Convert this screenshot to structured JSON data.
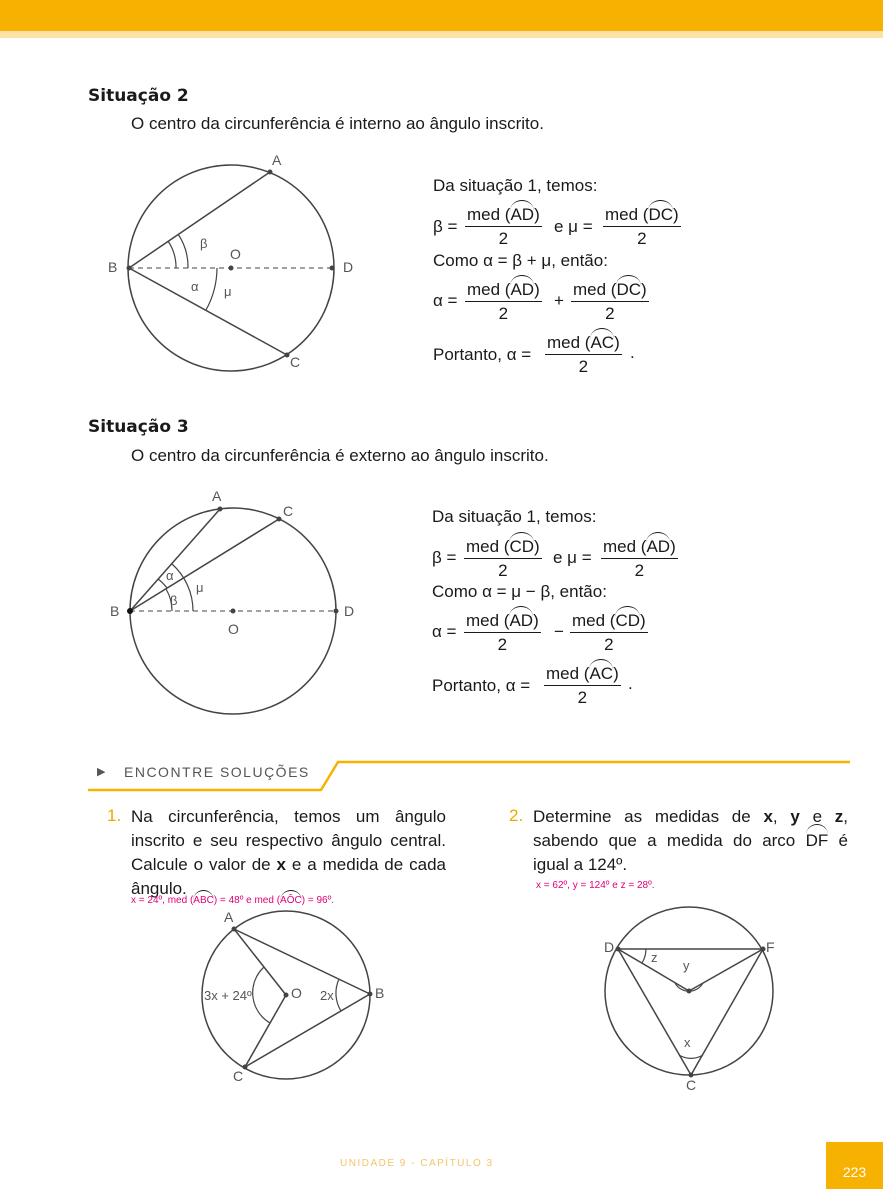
{
  "s2": {
    "heading": "Situação 2",
    "intro": "O centro da circunferência é interno ao ângulo inscrito.",
    "points": {
      "a": "A",
      "b": "B",
      "c": "C",
      "d": "D",
      "o": "O",
      "beta": "β",
      "alpha": "α",
      "mu": "μ"
    },
    "line1": "Da situação 1, temos:",
    "beta_lhs": "β =",
    "beta_num_pre": "med (",
    "beta_arc": "AD",
    "beta_num_post": ")",
    "beta_den": "2",
    "e_mu": "e μ =",
    "mu_num_pre": "med (",
    "mu_arc": "DC",
    "mu_num_post": ")",
    "mu_den": "2",
    "line2": "Como α = β + μ, então:",
    "alpha_lhs": "α =",
    "f1_pre": "med (",
    "f1_arc": "AD",
    "f1_post": ")",
    "f1_den": "2",
    "op": "+",
    "f2_pre": "med (",
    "f2_arc": "DC",
    "f2_post": ")",
    "f2_den": "2",
    "portanto": "Portanto, α =",
    "p_pre": "med (",
    "p_arc": "AC",
    "p_post": ")",
    "p_den": "2",
    "period": "."
  },
  "s3": {
    "heading": "Situação 3",
    "intro": "O centro da circunferência é externo ao ângulo inscrito.",
    "points": {
      "a": "A",
      "b": "B",
      "c": "C",
      "d": "D",
      "o": "O",
      "beta": "β",
      "alpha": "α",
      "mu": "μ"
    },
    "line1": "Da situação 1, temos:",
    "beta_lhs": "β =",
    "beta_num_pre": "med (",
    "beta_arc": "CD",
    "beta_num_post": ")",
    "beta_den": "2",
    "e_mu": "e μ =",
    "mu_num_pre": "med (",
    "mu_arc": "AD",
    "mu_num_post": ")",
    "mu_den": "2",
    "line2": "Como α = μ − β, então:",
    "alpha_lhs": "α =",
    "f1_pre": "med (",
    "f1_arc": "AD",
    "f1_post": ")",
    "f1_den": "2",
    "op": "−",
    "f2_pre": "med (",
    "f2_arc": "CD",
    "f2_post": ")",
    "f2_den": "2",
    "portanto": "Portanto, α =",
    "p_pre": "med (",
    "p_arc": "AC",
    "p_post": ")",
    "p_den": "2",
    "period": "."
  },
  "section": {
    "arrow": "▶",
    "title": "ENCONTRE SOLUÇÕES"
  },
  "ex1": {
    "num": "1.",
    "t1": "Na circunferência, temos um ângulo inscrito e seu respectivo ângulo central. Calcule o valor de ",
    "x": "x",
    "t2": " e a medida de cada ângulo.",
    "answer_pre": "x = 24º, med (",
    "answer_arc1": "ABC",
    "answer_mid": ") = 48º e med (",
    "answer_arc2": "AÔC",
    "answer_post": ") = 96º.",
    "points": {
      "a": "A",
      "b": "B",
      "c": "C",
      "o": "O",
      "central": "3x + 24º",
      "inscribed": "2x"
    }
  },
  "ex2": {
    "num": "2.",
    "t1": "Determine as medidas de ",
    "x": "x",
    "sep1": ", ",
    "y": "y",
    "sep2": " e ",
    "z": "z",
    "t2": ", sabendo que a medida do arco ",
    "arc": "DF",
    "t3": " é igual a 124º.",
    "answer": "x = 62º, y = 124º e z = 28º.",
    "points": {
      "d": "D",
      "f": "F",
      "c": "C",
      "x": "x",
      "y": "y",
      "z": "z"
    }
  },
  "footer": {
    "label": "UNIDADE 9  -  CAPÍTULO 3",
    "page": "223"
  },
  "colors": {
    "accent": "#f7b100",
    "answer": "#e0007a"
  }
}
